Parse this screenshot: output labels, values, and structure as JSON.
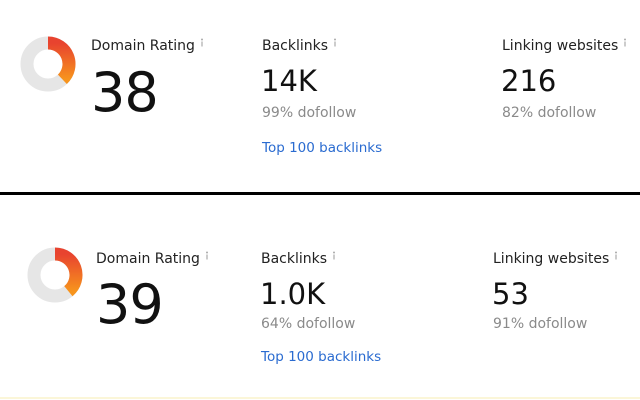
{
  "panels": [
    {
      "domain_rating": {
        "label": "Domain Rating",
        "value": 38
      },
      "backlinks": {
        "label": "Backlinks",
        "value": "14K",
        "dofollow": "99% dofollow",
        "link": "Top 100 backlinks"
      },
      "linking_websites": {
        "label": "Linking websites",
        "value": 216,
        "dofollow": "82% dofollow"
      }
    },
    {
      "domain_rating": {
        "label": "Domain Rating",
        "value": 39
      },
      "backlinks": {
        "label": "Backlinks",
        "value": "1.0K",
        "dofollow": "64% dofollow",
        "link": "Top 100 backlinks"
      },
      "linking_websites": {
        "label": "Linking websites",
        "value": 53,
        "dofollow": "91% dofollow"
      }
    }
  ]
}
